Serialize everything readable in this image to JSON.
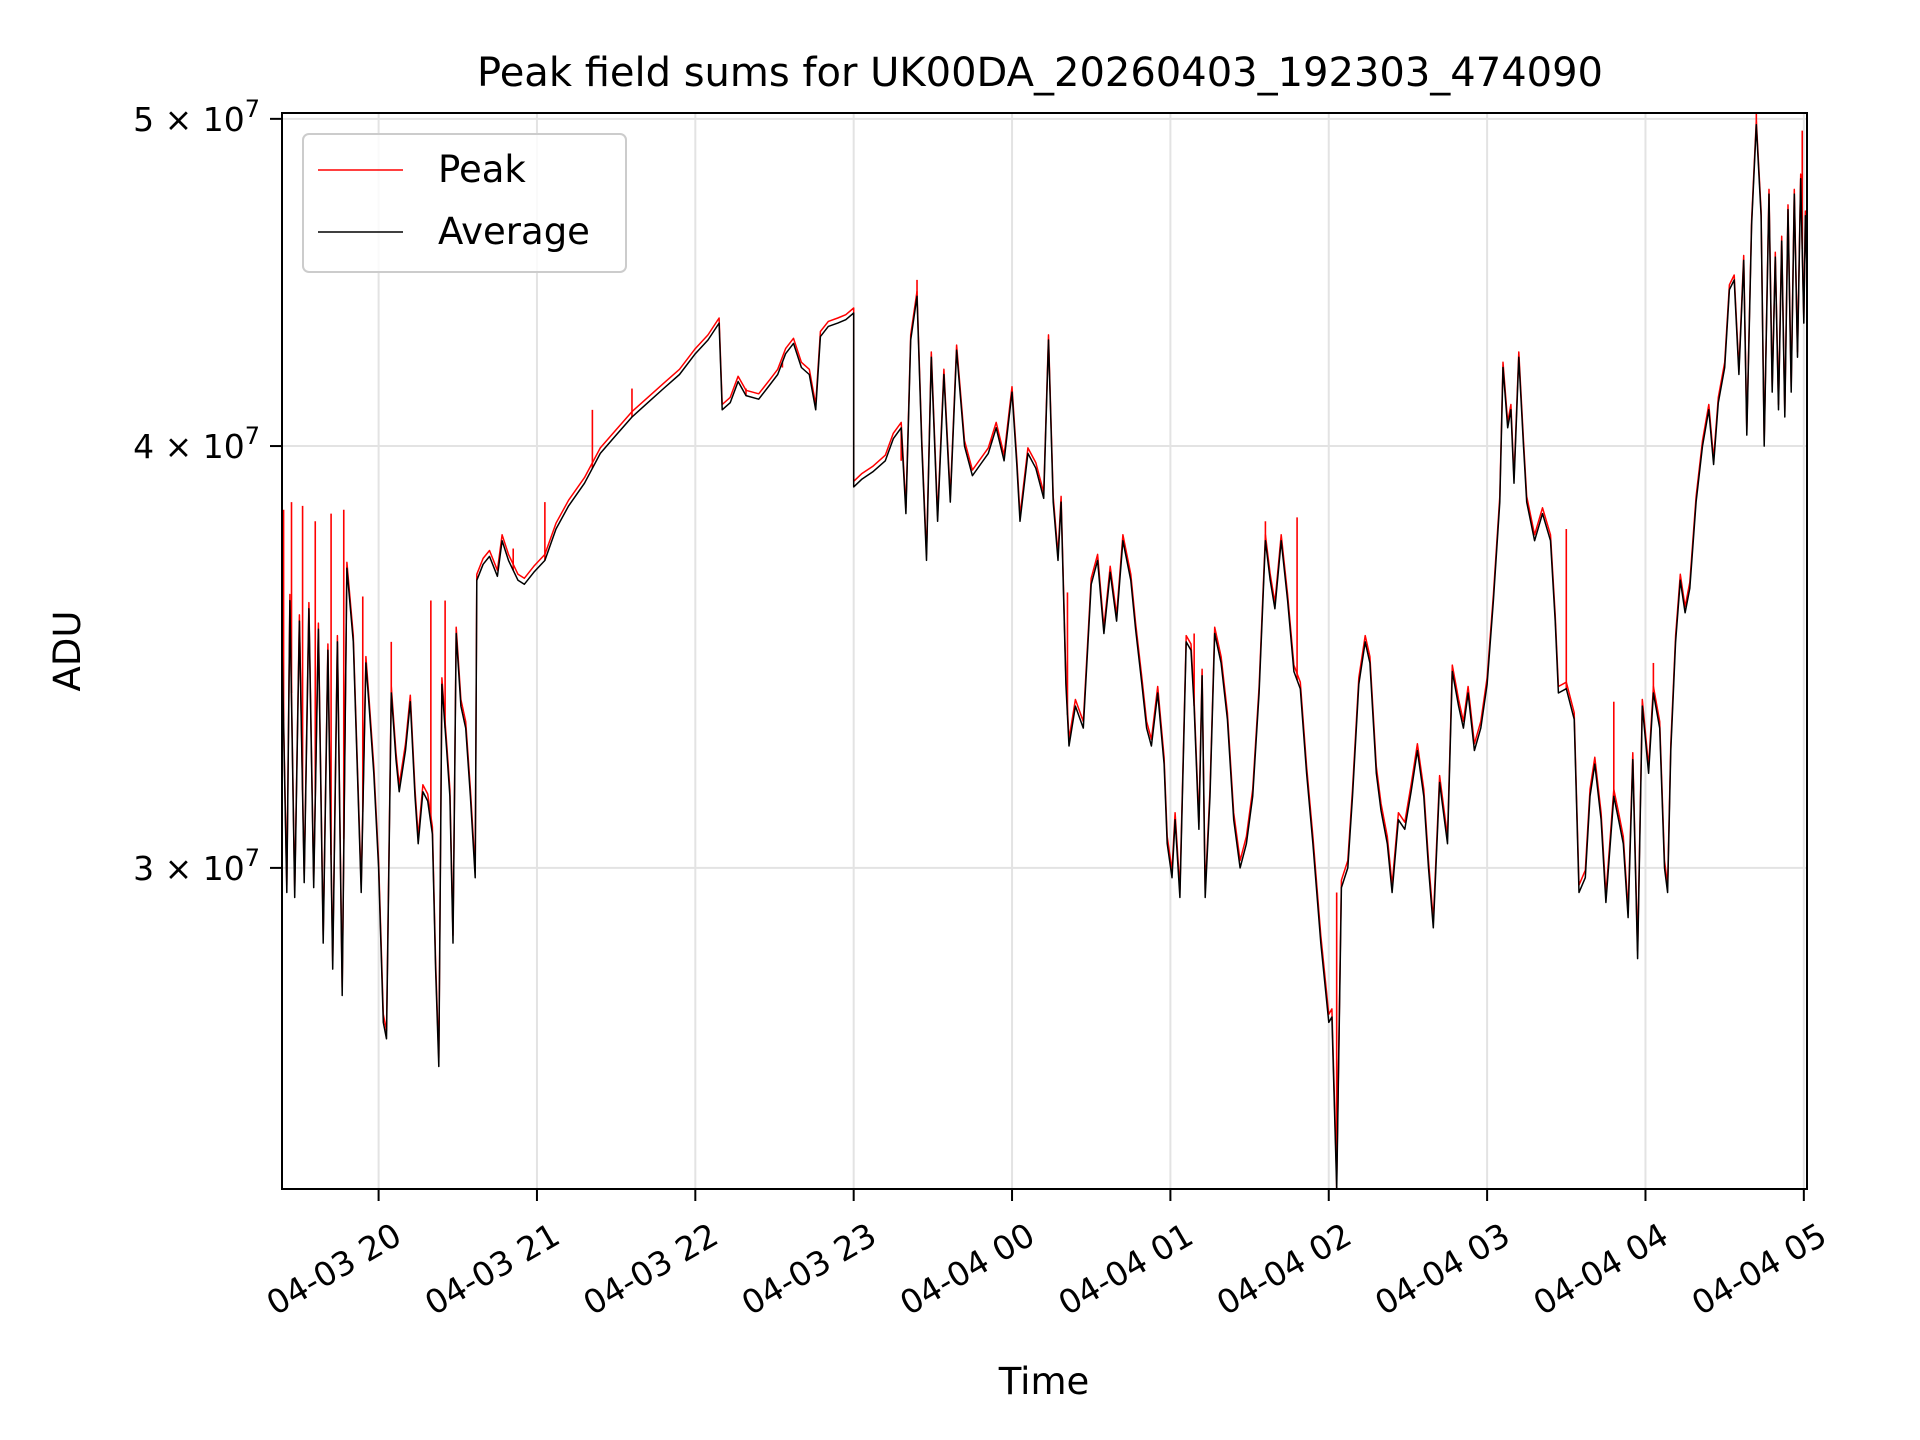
{
  "chart_data": {
    "type": "line",
    "title": "Peak field sums for UK00DA_20260403_192303_474090",
    "xlabel": "Time",
    "ylabel": "ADU",
    "yscale": "log",
    "ylim": [
      24100000,
      50200000
    ],
    "xlim_hours": [
      -0.61,
      9.02
    ],
    "grid": true,
    "legend_location": "upper-left",
    "x_ticks": [
      {
        "hours": 0,
        "label": "04-03 20"
      },
      {
        "hours": 1,
        "label": "04-03 21"
      },
      {
        "hours": 2,
        "label": "04-03 22"
      },
      {
        "hours": 3,
        "label": "04-03 23"
      },
      {
        "hours": 4,
        "label": "04-04 00"
      },
      {
        "hours": 5,
        "label": "04-04 01"
      },
      {
        "hours": 6,
        "label": "04-04 02"
      },
      {
        "hours": 7,
        "label": "04-04 03"
      },
      {
        "hours": 8,
        "label": "04-04 04"
      },
      {
        "hours": 9,
        "label": "04-04 05"
      }
    ],
    "y_ticks": [
      {
        "value": 30000000,
        "mantissa": "3",
        "exponent": "7"
      },
      {
        "value": 40000000,
        "mantissa": "4",
        "exponent": "7"
      },
      {
        "value": 50000000,
        "mantissa": "5",
        "exponent": "7"
      }
    ],
    "series": [
      {
        "name": "Peak",
        "color": "#ff0000",
        "spikes": [
          [
            -0.6,
            38.3
          ],
          [
            -0.55,
            38.5
          ],
          [
            -0.48,
            38.4
          ],
          [
            -0.4,
            38.0
          ],
          [
            -0.3,
            38.2
          ],
          [
            -0.22,
            38.3
          ],
          [
            -0.1,
            36.1
          ],
          [
            0.08,
            35.0
          ],
          [
            0.33,
            36.0
          ],
          [
            0.42,
            36.0
          ],
          [
            0.85,
            37.3
          ],
          [
            1.05,
            38.5
          ],
          [
            1.35,
            41.0
          ],
          [
            1.6,
            41.6
          ],
          [
            2.32,
            41.6
          ],
          [
            2.55,
            42.2
          ],
          [
            3.3,
            39.6
          ],
          [
            3.4,
            44.8
          ],
          [
            3.87,
            40.2
          ],
          [
            4.35,
            36.2
          ],
          [
            5.15,
            35.2
          ],
          [
            5.6,
            38.0
          ],
          [
            5.8,
            38.1
          ],
          [
            6.05,
            29.5
          ],
          [
            7.5,
            37.8
          ],
          [
            7.8,
            33.6
          ],
          [
            8.05,
            34.5
          ],
          [
            8.7,
            50.2
          ],
          [
            8.99,
            49.6
          ]
        ]
      },
      {
        "name": "Average",
        "color": "#000000",
        "points": [
          [
            -0.61,
            35.0
          ],
          [
            -0.58,
            29.5
          ],
          [
            -0.56,
            36.0
          ],
          [
            -0.53,
            29.4
          ],
          [
            -0.5,
            35.5
          ],
          [
            -0.47,
            29.7
          ],
          [
            -0.44,
            35.8
          ],
          [
            -0.41,
            29.6
          ],
          [
            -0.38,
            35.3
          ],
          [
            -0.35,
            28.5
          ],
          [
            -0.32,
            34.8
          ],
          [
            -0.29,
            28.0
          ],
          [
            -0.26,
            35.0
          ],
          [
            -0.23,
            27.5
          ],
          [
            -0.2,
            36.8
          ],
          [
            -0.16,
            35.0
          ],
          [
            -0.11,
            29.5
          ],
          [
            -0.08,
            34.5
          ],
          [
            -0.06,
            33.5
          ],
          [
            -0.03,
            32.0
          ],
          [
            0.0,
            30.0
          ],
          [
            0.03,
            27.0
          ],
          [
            0.05,
            26.7
          ],
          [
            0.08,
            33.8
          ],
          [
            0.11,
            32.3
          ],
          [
            0.13,
            31.6
          ],
          [
            0.17,
            32.5
          ],
          [
            0.2,
            33.6
          ],
          [
            0.23,
            31.5
          ],
          [
            0.25,
            30.5
          ],
          [
            0.28,
            31.6
          ],
          [
            0.31,
            31.4
          ],
          [
            0.34,
            30.7
          ],
          [
            0.36,
            28.0
          ],
          [
            0.38,
            26.2
          ],
          [
            0.4,
            34.0
          ],
          [
            0.43,
            32.5
          ],
          [
            0.45,
            31.5
          ],
          [
            0.47,
            28.5
          ],
          [
            0.49,
            35.2
          ],
          [
            0.52,
            33.5
          ],
          [
            0.55,
            33.0
          ],
          [
            0.58,
            31.5
          ],
          [
            0.61,
            29.8
          ],
          [
            0.62,
            36.5
          ],
          [
            0.66,
            36.9
          ],
          [
            0.7,
            37.1
          ],
          [
            0.75,
            36.6
          ],
          [
            0.78,
            37.5
          ],
          [
            0.82,
            37.0
          ],
          [
            0.88,
            36.5
          ],
          [
            0.92,
            36.4
          ],
          [
            0.98,
            36.7
          ],
          [
            1.05,
            37.0
          ],
          [
            1.12,
            37.8
          ],
          [
            1.2,
            38.4
          ],
          [
            1.3,
            39.0
          ],
          [
            1.4,
            39.8
          ],
          [
            1.5,
            40.3
          ],
          [
            1.6,
            40.8
          ],
          [
            1.7,
            41.2
          ],
          [
            1.8,
            41.6
          ],
          [
            1.9,
            42.0
          ],
          [
            2.0,
            42.6
          ],
          [
            2.08,
            43.0
          ],
          [
            2.15,
            43.5
          ],
          [
            2.17,
            41.0
          ],
          [
            2.22,
            41.2
          ],
          [
            2.27,
            41.8
          ],
          [
            2.32,
            41.4
          ],
          [
            2.4,
            41.3
          ],
          [
            2.47,
            41.7
          ],
          [
            2.52,
            42.0
          ],
          [
            2.57,
            42.6
          ],
          [
            2.62,
            42.9
          ],
          [
            2.67,
            42.2
          ],
          [
            2.72,
            42.0
          ],
          [
            2.76,
            41.0
          ],
          [
            2.79,
            43.1
          ],
          [
            2.84,
            43.4
          ],
          [
            2.9,
            43.5
          ],
          [
            2.95,
            43.6
          ],
          [
            3.0,
            43.8
          ],
          [
            3.0,
            38.9
          ],
          [
            3.05,
            39.1
          ],
          [
            3.12,
            39.3
          ],
          [
            3.2,
            39.6
          ],
          [
            3.25,
            40.2
          ],
          [
            3.3,
            40.5
          ],
          [
            3.33,
            38.2
          ],
          [
            3.36,
            43.0
          ],
          [
            3.4,
            44.3
          ],
          [
            3.43,
            40.0
          ],
          [
            3.46,
            37.0
          ],
          [
            3.49,
            42.5
          ],
          [
            3.53,
            38.0
          ],
          [
            3.57,
            42.0
          ],
          [
            3.61,
            38.5
          ],
          [
            3.65,
            42.7
          ],
          [
            3.7,
            40.0
          ],
          [
            3.75,
            39.2
          ],
          [
            3.8,
            39.5
          ],
          [
            3.85,
            39.8
          ],
          [
            3.9,
            40.5
          ],
          [
            3.95,
            39.6
          ],
          [
            4.0,
            41.5
          ],
          [
            4.03,
            39.5
          ],
          [
            4.05,
            38.0
          ],
          [
            4.1,
            39.8
          ],
          [
            4.15,
            39.4
          ],
          [
            4.2,
            38.6
          ],
          [
            4.23,
            43.0
          ],
          [
            4.26,
            38.5
          ],
          [
            4.29,
            37.0
          ],
          [
            4.31,
            38.5
          ],
          [
            4.34,
            34.0
          ],
          [
            4.36,
            32.6
          ],
          [
            4.4,
            33.5
          ],
          [
            4.45,
            33.0
          ],
          [
            4.5,
            36.4
          ],
          [
            4.54,
            37.0
          ],
          [
            4.58,
            35.2
          ],
          [
            4.62,
            36.7
          ],
          [
            4.66,
            35.5
          ],
          [
            4.7,
            37.5
          ],
          [
            4.75,
            36.5
          ],
          [
            4.78,
            35.3
          ],
          [
            4.82,
            34.0
          ],
          [
            4.85,
            33.0
          ],
          [
            4.88,
            32.6
          ],
          [
            4.92,
            33.8
          ],
          [
            4.96,
            32.2
          ],
          [
            4.98,
            30.5
          ],
          [
            5.01,
            29.8
          ],
          [
            5.03,
            31.0
          ],
          [
            5.06,
            29.4
          ],
          [
            5.1,
            35.0
          ],
          [
            5.13,
            34.8
          ],
          [
            5.15,
            33.5
          ],
          [
            5.18,
            30.8
          ],
          [
            5.2,
            34.2
          ],
          [
            5.22,
            29.4
          ],
          [
            5.25,
            31.5
          ],
          [
            5.28,
            35.2
          ],
          [
            5.32,
            34.5
          ],
          [
            5.36,
            33.2
          ],
          [
            5.4,
            31.0
          ],
          [
            5.44,
            30.0
          ],
          [
            5.48,
            30.5
          ],
          [
            5.52,
            31.5
          ],
          [
            5.56,
            33.8
          ],
          [
            5.6,
            37.5
          ],
          [
            5.63,
            36.5
          ],
          [
            5.66,
            35.8
          ],
          [
            5.7,
            37.5
          ],
          [
            5.74,
            36.0
          ],
          [
            5.78,
            34.3
          ],
          [
            5.82,
            33.9
          ],
          [
            5.86,
            32.0
          ],
          [
            5.9,
            30.5
          ],
          [
            5.95,
            28.5
          ],
          [
            6.0,
            27.0
          ],
          [
            6.02,
            27.1
          ],
          [
            6.05,
            24.1
          ],
          [
            6.08,
            29.6
          ],
          [
            6.12,
            30.0
          ],
          [
            6.15,
            31.5
          ],
          [
            6.19,
            34.0
          ],
          [
            6.23,
            35.0
          ],
          [
            6.26,
            34.5
          ],
          [
            6.3,
            32.0
          ],
          [
            6.33,
            31.2
          ],
          [
            6.37,
            30.5
          ],
          [
            6.4,
            29.5
          ],
          [
            6.44,
            31.0
          ],
          [
            6.48,
            30.8
          ],
          [
            6.52,
            31.6
          ],
          [
            6.56,
            32.5
          ],
          [
            6.6,
            31.5
          ],
          [
            6.63,
            30.0
          ],
          [
            6.66,
            28.8
          ],
          [
            6.7,
            31.8
          ],
          [
            6.75,
            30.5
          ],
          [
            6.78,
            34.3
          ],
          [
            6.82,
            33.5
          ],
          [
            6.85,
            33.0
          ],
          [
            6.88,
            33.8
          ],
          [
            6.92,
            32.5
          ],
          [
            6.96,
            33.0
          ],
          [
            7.0,
            34.0
          ],
          [
            7.04,
            36.0
          ],
          [
            7.08,
            38.5
          ],
          [
            7.1,
            42.2
          ],
          [
            7.13,
            40.5
          ],
          [
            7.15,
            41.0
          ],
          [
            7.17,
            39.0
          ],
          [
            7.2,
            42.5
          ],
          [
            7.23,
            40.0
          ],
          [
            7.25,
            38.5
          ],
          [
            7.3,
            37.5
          ],
          [
            7.35,
            38.2
          ],
          [
            7.4,
            37.5
          ],
          [
            7.43,
            35.5
          ],
          [
            7.45,
            33.8
          ],
          [
            7.5,
            33.9
          ],
          [
            7.55,
            33.2
          ],
          [
            7.58,
            29.5
          ],
          [
            7.62,
            29.8
          ],
          [
            7.65,
            31.5
          ],
          [
            7.68,
            32.2
          ],
          [
            7.72,
            31.0
          ],
          [
            7.75,
            29.3
          ],
          [
            7.8,
            31.5
          ],
          [
            7.83,
            31.0
          ],
          [
            7.86,
            30.5
          ],
          [
            7.89,
            29.0
          ],
          [
            7.92,
            32.3
          ],
          [
            7.95,
            28.2
          ],
          [
            7.98,
            33.5
          ],
          [
            8.02,
            32.0
          ],
          [
            8.05,
            33.8
          ],
          [
            8.09,
            33.0
          ],
          [
            8.12,
            30.0
          ],
          [
            8.14,
            29.5
          ],
          [
            8.16,
            32.5
          ],
          [
            8.19,
            35.0
          ],
          [
            8.22,
            36.5
          ],
          [
            8.25,
            35.7
          ],
          [
            8.28,
            36.3
          ],
          [
            8.32,
            38.5
          ],
          [
            8.36,
            40.0
          ],
          [
            8.4,
            41.0
          ],
          [
            8.43,
            39.5
          ],
          [
            8.46,
            41.2
          ],
          [
            8.5,
            42.2
          ],
          [
            8.53,
            44.5
          ],
          [
            8.56,
            44.8
          ],
          [
            8.59,
            42.0
          ],
          [
            8.62,
            45.4
          ],
          [
            8.64,
            40.3
          ],
          [
            8.67,
            46.5
          ],
          [
            8.7,
            49.8
          ],
          [
            8.73,
            46.8
          ],
          [
            8.75,
            40.0
          ],
          [
            8.78,
            47.5
          ],
          [
            8.8,
            41.5
          ],
          [
            8.82,
            45.5
          ],
          [
            8.84,
            41.0
          ],
          [
            8.86,
            46.0
          ],
          [
            8.88,
            40.8
          ],
          [
            8.9,
            47.0
          ],
          [
            8.92,
            41.5
          ],
          [
            8.94,
            47.5
          ],
          [
            8.96,
            42.5
          ],
          [
            8.98,
            48.0
          ],
          [
            9.0,
            43.5
          ],
          [
            9.01,
            46.8
          ],
          [
            9.02,
            45.0
          ]
        ]
      }
    ]
  }
}
